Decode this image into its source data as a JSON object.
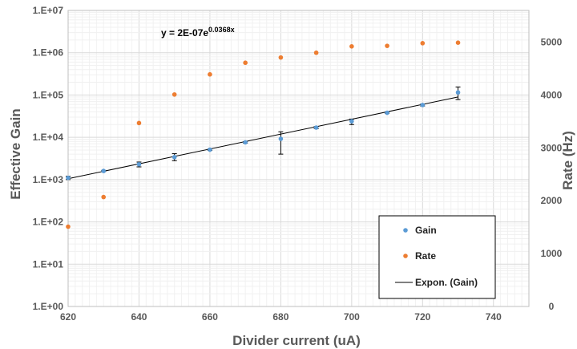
{
  "chart_data": {
    "type": "scatter",
    "xlabel": "Divider current (uA)",
    "ylabel": "Effective Gain",
    "y2label": "Rate (Hz)",
    "xlim": [
      620,
      750
    ],
    "xticks": [
      620,
      640,
      660,
      680,
      700,
      720,
      740
    ],
    "ylim": [
      1,
      10000000
    ],
    "yscale": "log",
    "yticks": [
      "1.E+00",
      "1.E+01",
      "1.E+02",
      "1.E+03",
      "1.E+04",
      "1.E+05",
      "1.E+06",
      "1.E+07"
    ],
    "y2lim": [
      0,
      5600
    ],
    "y2ticks": [
      0,
      1000,
      2000,
      3000,
      4000,
      5000
    ],
    "grid": true,
    "legend_position": "bottom-right",
    "equation": {
      "prefix": "y = 2E-07e",
      "exponent": "0.0368x"
    },
    "series": [
      {
        "name": "Gain",
        "axis": "left",
        "color": "#5b9bd5",
        "x": [
          620,
          630,
          640,
          650,
          660,
          670,
          680,
          690,
          700,
          710,
          720,
          730
        ],
        "y": [
          1100,
          1600,
          2300,
          3400,
          5100,
          7600,
          9200,
          17000,
          24000,
          38000,
          58000,
          115000
        ],
        "err_low": [
          1000,
          1550,
          2000,
          2800,
          4900,
          7300,
          4000,
          16000,
          20000,
          37000,
          55000,
          78000
        ],
        "err_high": [
          1200,
          1650,
          2600,
          4100,
          5300,
          7900,
          13500,
          18000,
          27000,
          40000,
          61000,
          155000
        ]
      },
      {
        "name": "Rate",
        "axis": "right",
        "color": "#ed7d31",
        "x": [
          620,
          630,
          640,
          650,
          660,
          670,
          680,
          690,
          700,
          710,
          720,
          730
        ],
        "y": [
          1510,
          2070,
          3470,
          4010,
          4390,
          4610,
          4710,
          4800,
          4920,
          4930,
          4980,
          4990
        ]
      },
      {
        "name": "Expon. (Gain)",
        "type": "trendline",
        "color": "#000000",
        "x": [
          620,
          730
        ],
        "y": [
          1050,
          90000
        ]
      }
    ]
  }
}
